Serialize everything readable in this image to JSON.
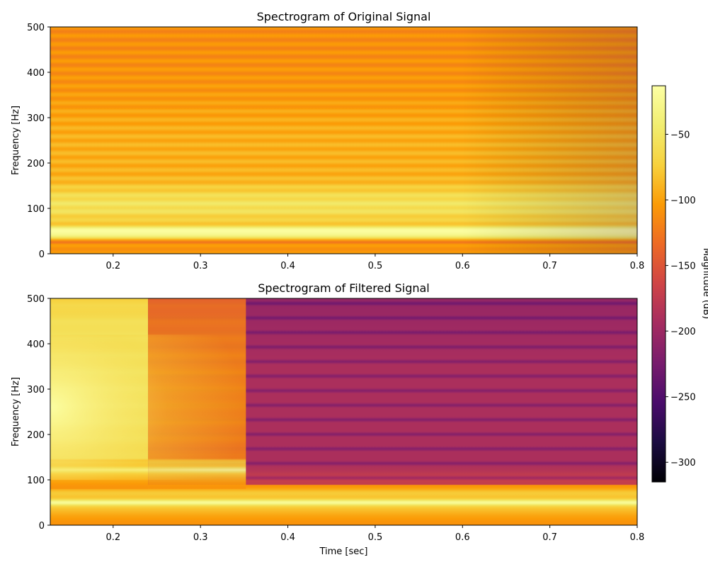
{
  "chart_data": [
    {
      "type": "heatmap",
      "title": "Spectrogram of Original Signal",
      "xlabel": "",
      "ylabel": "Frequency [Hz]",
      "xlim": [
        0.128,
        0.8
      ],
      "ylim": [
        0,
        500
      ],
      "xticks": [
        0.2,
        0.3,
        0.4,
        0.5,
        0.6,
        0.7,
        0.8
      ],
      "yticks": [
        0,
        100,
        200,
        300,
        400,
        500
      ],
      "colormap": "inferno",
      "description_values_db": {
        "band_0_20hz": -110,
        "band_25hz_dip": -120,
        "band_40_60hz_peak": -25,
        "band_80_120hz": -75,
        "band_150_300hz": -95,
        "band_300_500hz": -110
      }
    },
    {
      "type": "heatmap",
      "title": "Spectrogram of Filtered Signal",
      "xlabel": "Time [sec]",
      "ylabel": "Frequency [Hz]",
      "xlim": [
        0.128,
        0.8
      ],
      "ylim": [
        0,
        500
      ],
      "xticks": [
        0.2,
        0.3,
        0.4,
        0.5,
        0.6,
        0.7,
        0.8
      ],
      "yticks": [
        0,
        100,
        200,
        300,
        400,
        500
      ],
      "colormap": "inferno",
      "transient_segments_sec": [
        0.128,
        0.24,
        0.352,
        0.8
      ],
      "description_values_db": {
        "band_50hz_peak": -40,
        "band_60_90hz": -90,
        "band_above_120hz_late": -200,
        "early_transient_200_300hz": -30
      }
    }
  ],
  "colorbar": {
    "label": "Magnitude (dB)",
    "range": [
      -315,
      -13
    ],
    "ticks": [
      -50,
      -100,
      -150,
      -200,
      -250,
      -300
    ]
  }
}
